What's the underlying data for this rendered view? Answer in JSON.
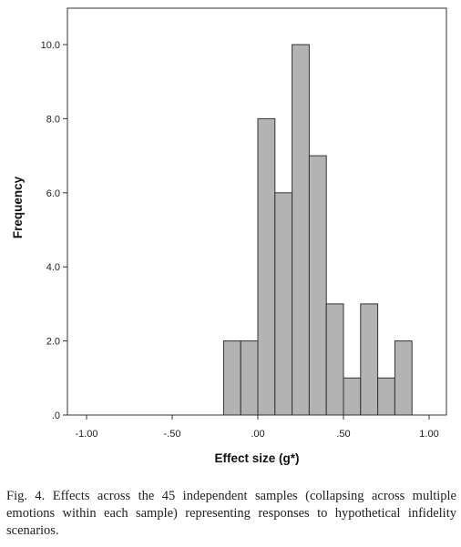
{
  "chart_data": {
    "type": "bar",
    "xlabel": "Effect size (g*)",
    "ylabel": "Frequency",
    "xlim": [
      -1.1,
      1.1
    ],
    "ylim": [
      0,
      11
    ],
    "x_ticks": [
      {
        "value": -1.0,
        "label": "-1.00"
      },
      {
        "value": -0.5,
        "label": "-.50"
      },
      {
        "value": 0.0,
        "label": ".00"
      },
      {
        "value": 0.5,
        "label": ".50"
      },
      {
        "value": 1.0,
        "label": "1.00"
      }
    ],
    "y_ticks": [
      {
        "value": 0,
        "label": ".0"
      },
      {
        "value": 2,
        "label": "2.0"
      },
      {
        "value": 4,
        "label": "4.0"
      },
      {
        "value": 6,
        "label": "6.0"
      },
      {
        "value": 8,
        "label": "8.0"
      },
      {
        "value": 10,
        "label": "10.0"
      }
    ],
    "bins": [
      {
        "x0": -0.2,
        "x1": -0.1,
        "value": 2
      },
      {
        "x0": -0.1,
        "x1": 0.0,
        "value": 2
      },
      {
        "x0": 0.0,
        "x1": 0.1,
        "value": 8
      },
      {
        "x0": 0.1,
        "x1": 0.2,
        "value": 6
      },
      {
        "x0": 0.2,
        "x1": 0.3,
        "value": 10
      },
      {
        "x0": 0.3,
        "x1": 0.4,
        "value": 7
      },
      {
        "x0": 0.4,
        "x1": 0.5,
        "value": 3
      },
      {
        "x0": 0.5,
        "x1": 0.6,
        "value": 1
      },
      {
        "x0": 0.6,
        "x1": 0.7,
        "value": 3
      },
      {
        "x0": 0.7,
        "x1": 0.8,
        "value": 1
      },
      {
        "x0": 0.8,
        "x1": 0.9,
        "value": 2
      }
    ],
    "bar_color": "#b3b3b3",
    "bar_edge_color": "#333333",
    "grid": false
  },
  "caption": "Fig. 4. Effects across the 45 independent samples (collapsing across multiple emotions within each sample) representing responses to hypothetical infidelity scenarios."
}
